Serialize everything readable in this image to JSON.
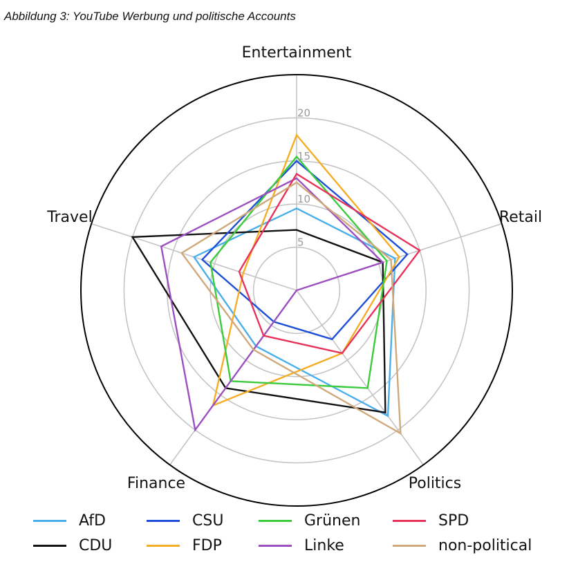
{
  "caption": "Abbildung 3: YouTube Werbung und politische Accounts",
  "chart_data": {
    "type": "radar",
    "title": "",
    "axes": [
      "Entertainment",
      "Retail",
      "Politics",
      "Finance",
      "Travel"
    ],
    "r_ticks": [
      5,
      10,
      15,
      20
    ],
    "r_max": 25,
    "grid": true,
    "legend_position": "bottom",
    "series": [
      {
        "name": "AfD",
        "color": "#4aaeea",
        "values": [
          9.5,
          12.0,
          18.0,
          8.0,
          12.5
        ]
      },
      {
        "name": "CDU",
        "color": "#111111",
        "values": [
          7.0,
          10.5,
          17.5,
          14.0,
          20.0
        ]
      },
      {
        "name": "CSU",
        "color": "#1f4fd6",
        "values": [
          15.0,
          13.5,
          7.0,
          4.5,
          11.5
        ]
      },
      {
        "name": "FDP",
        "color": "#f5ad26",
        "values": [
          18.0,
          12.5,
          9.0,
          16.5,
          6.5
        ]
      },
      {
        "name": "Grünen",
        "color": "#3ccb3c",
        "values": [
          15.5,
          11.0,
          14.0,
          13.0,
          10.5
        ]
      },
      {
        "name": "Linke",
        "color": "#9b4fc0",
        "values": [
          13.0,
          10.5,
          0.0,
          20.0,
          16.5
        ]
      },
      {
        "name": "SPD",
        "color": "#e8325a",
        "values": [
          13.5,
          15.0,
          9.0,
          6.5,
          7.0
        ]
      },
      {
        "name": "non-political",
        "color": "#cfa97a",
        "values": [
          12.5,
          11.5,
          20.5,
          8.5,
          14.0
        ]
      }
    ]
  }
}
